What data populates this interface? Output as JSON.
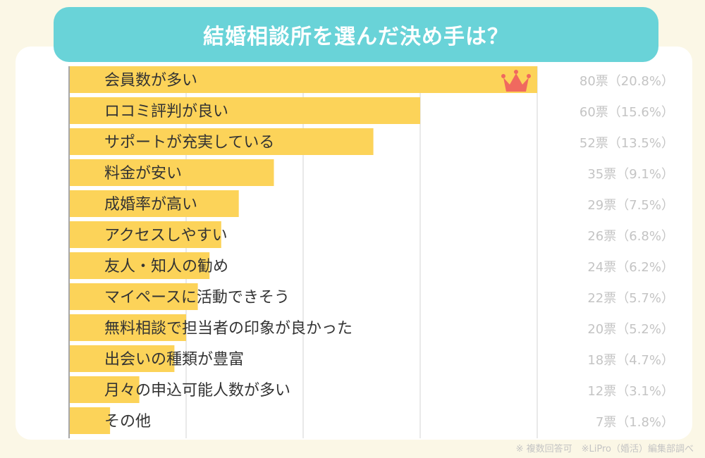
{
  "title": "結婚相談所を選んだ決め手は？",
  "footnote": "※ 複数回答可　※LiPro（婚活）編集部調べ",
  "colors": {
    "bar": "#fcd359",
    "title_bg": "#69d3d8",
    "value_text": "#c4c4c4",
    "crown": "#f0695f"
  },
  "chart_data": {
    "type": "bar",
    "orientation": "horizontal",
    "title": "結婚相談所を選んだ決め手は？",
    "categories": [
      "会員数が多い",
      "ロコミ評判が良い",
      "サポートが充実している",
      "料金が安い",
      "成婚率が高い",
      "アクセスしやすい",
      "友人・知人の勧め",
      "マイペースに活動できそう",
      "無料相談で担当者の印象が良かった",
      "出会いの種類が豊富",
      "月々の申込可能人数が多い",
      "その他"
    ],
    "values": [
      80,
      60,
      52,
      35,
      29,
      26,
      24,
      22,
      20,
      18,
      12,
      7
    ],
    "value_labels": [
      "80票（20.8%）",
      "60票（15.6%）",
      "52票（13.5%）",
      "35票（9.1%）",
      "29票（7.5%）",
      "26票（6.8%）",
      "24票（6.2%）",
      "22票（5.7%）",
      "20票（5.2%）",
      "18票（4.7%）",
      "12票（3.1%）",
      "7票（1.8%）"
    ],
    "xlim": [
      0,
      80
    ],
    "grid": true,
    "highlight": {
      "category": "会員数が多い",
      "icon": "crown-icon"
    }
  }
}
